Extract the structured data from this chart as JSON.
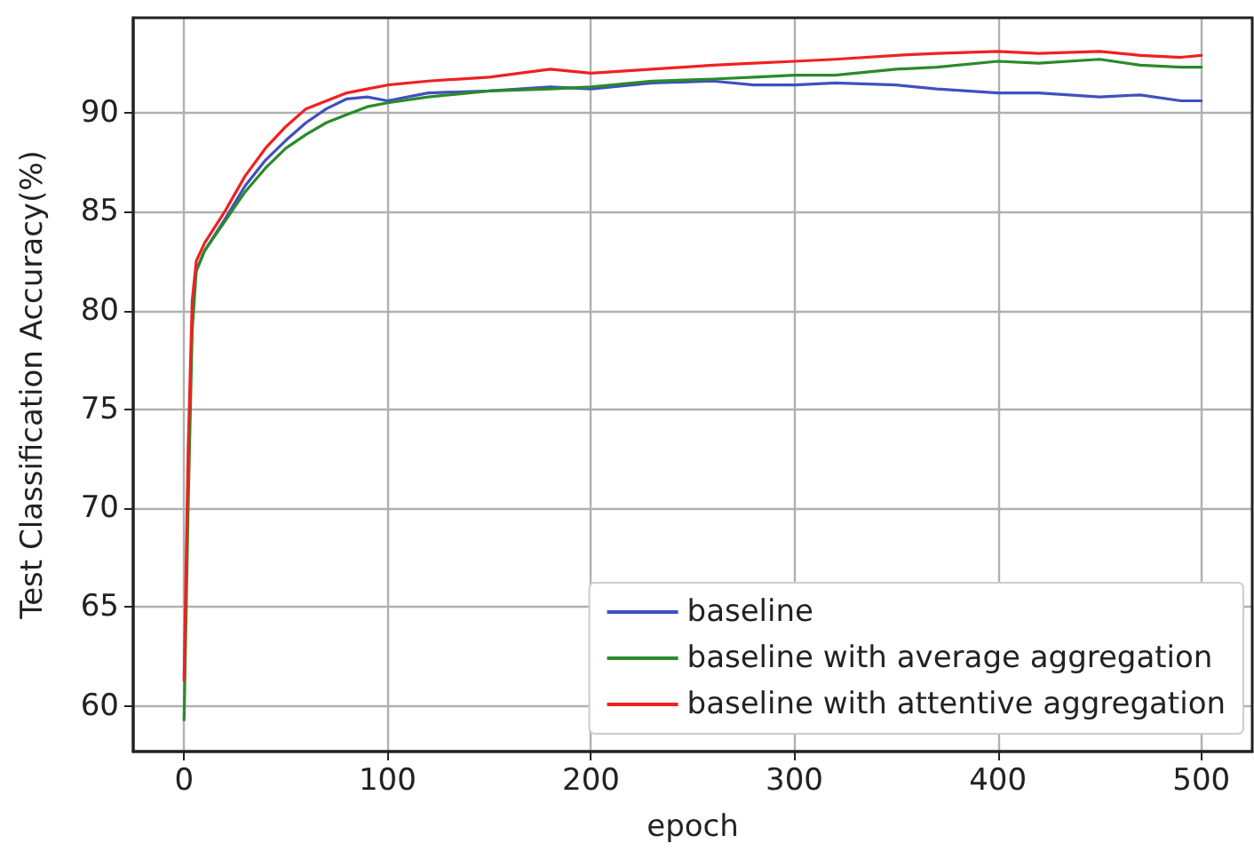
{
  "chart_data": {
    "type": "line",
    "xlabel": "epoch",
    "ylabel": "Test Classification Accuracy(%)",
    "xlim": [
      -25,
      525
    ],
    "ylim": [
      57.7,
      94.8
    ],
    "xticks": [
      0,
      100,
      200,
      300,
      400,
      500
    ],
    "yticks": [
      60,
      65,
      70,
      75,
      80,
      85,
      90
    ],
    "grid": true,
    "legend": "bottom right",
    "marker": "none",
    "line_style": "solid",
    "x": [
      0,
      2,
      4,
      6,
      10,
      20,
      30,
      40,
      50,
      60,
      70,
      80,
      90,
      100,
      120,
      150,
      180,
      200,
      230,
      260,
      280,
      300,
      320,
      350,
      370,
      400,
      420,
      450,
      470,
      490,
      500
    ],
    "series": [
      {
        "name": "baseline",
        "color": "#4050c0",
        "values": [
          null,
          null,
          null,
          82,
          83,
          84.6,
          86.3,
          87.6,
          88.6,
          89.5,
          90.2,
          90.7,
          90.8,
          90.6,
          91.0,
          91.1,
          91.3,
          91.2,
          91.5,
          91.6,
          91.4,
          91.4,
          91.5,
          91.4,
          91.2,
          91.0,
          91.0,
          90.8,
          90.9,
          90.6,
          90.6
        ]
      },
      {
        "name": "baseline with average aggregation",
        "color": "#2a8a2a",
        "values": [
          59.3,
          70,
          79,
          82,
          83,
          84.5,
          86,
          87.2,
          88.2,
          88.9,
          89.5,
          89.9,
          90.3,
          90.5,
          90.8,
          91.1,
          91.2,
          91.3,
          91.6,
          91.7,
          91.8,
          91.9,
          91.9,
          92.2,
          92.3,
          92.6,
          92.5,
          92.7,
          92.4,
          92.3,
          92.3
        ]
      },
      {
        "name": "baseline with attentive aggregation",
        "color": "#f02020",
        "values": [
          61.3,
          73,
          80.5,
          82.5,
          83.4,
          85,
          86.8,
          88.2,
          89.3,
          90.2,
          90.6,
          91.0,
          91.2,
          91.4,
          91.6,
          91.8,
          92.2,
          92.0,
          92.2,
          92.4,
          92.5,
          92.6,
          92.7,
          92.9,
          93.0,
          93.1,
          93.0,
          93.1,
          92.9,
          92.8,
          92.9
        ]
      }
    ]
  }
}
